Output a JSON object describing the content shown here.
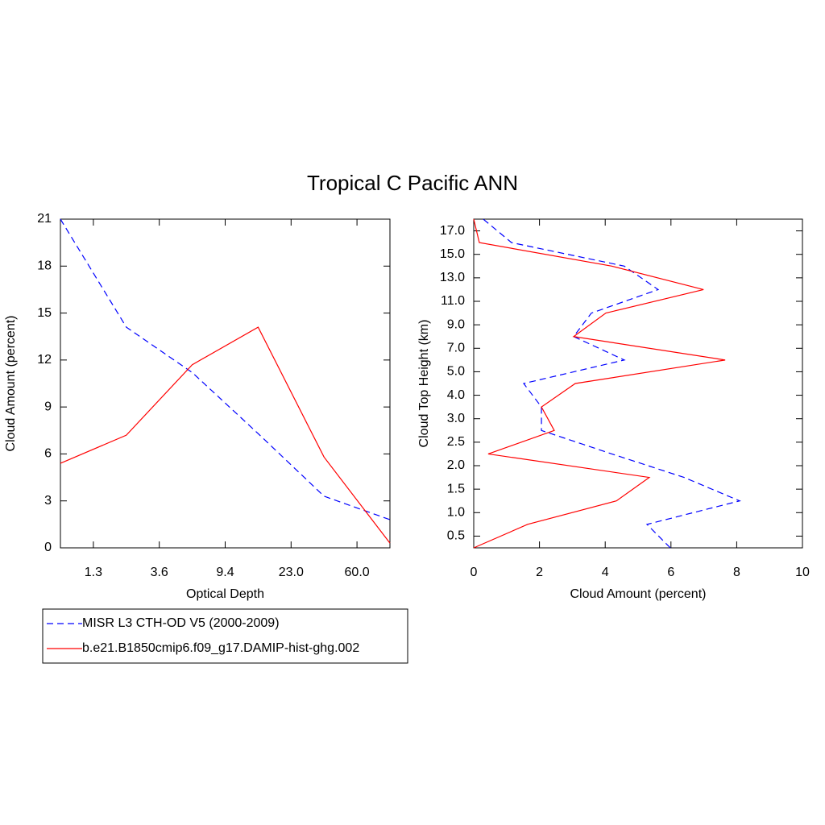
{
  "chart_data": [
    {
      "type": "line",
      "title": "Tropical C Pacific ANN",
      "x_label": "Optical Depth",
      "y_label": "Cloud Amount (percent)",
      "x": [
        0,
        1,
        2,
        3,
        4,
        5
      ],
      "xlim": [
        0,
        5
      ],
      "xticks": [
        {
          "value": 0.5,
          "label": "1.3"
        },
        {
          "value": 1.5,
          "label": "3.6"
        },
        {
          "value": 2.5,
          "label": "9.4"
        },
        {
          "value": 3.5,
          "label": "23.0"
        },
        {
          "value": 4.5,
          "label": "60.0"
        }
      ],
      "ylim": [
        0,
        21
      ],
      "yticks": [
        0,
        3,
        6,
        9,
        12,
        15,
        18,
        21
      ],
      "series": [
        {
          "name": "MISR L3 CTH-OD V5 (2000-2009)",
          "color": "#0000ff",
          "dashed": true,
          "values": [
            21,
            14.1,
            11.2,
            7.3,
            3.3,
            1.8
          ]
        },
        {
          "name": "b.e21.B1850cmip6.f09_g17.DAMIP-hist-ghg.002",
          "color": "#ff0000",
          "dashed": false,
          "values": [
            5.4,
            7.2,
            11.7,
            14.1,
            5.8,
            0.3
          ]
        }
      ]
    },
    {
      "type": "line",
      "orientation": "horizontal",
      "x_label": "Cloud Amount (percent)",
      "y_label": "Cloud Top Height (km)",
      "y": [
        0,
        1,
        2,
        3,
        4,
        5,
        6,
        7,
        8,
        9,
        10,
        11,
        12,
        13,
        14
      ],
      "xlim": [
        0,
        10
      ],
      "xticks": [
        0,
        2,
        4,
        6,
        8,
        10
      ],
      "ylim": [
        0,
        14
      ],
      "yticks": [
        {
          "value": 0.5,
          "label": "0.5"
        },
        {
          "value": 1.5,
          "label": "1.0"
        },
        {
          "value": 2.5,
          "label": "1.5"
        },
        {
          "value": 3.5,
          "label": "2.0"
        },
        {
          "value": 4.5,
          "label": "2.5"
        },
        {
          "value": 5.5,
          "label": "3.0"
        },
        {
          "value": 6.5,
          "label": "4.0"
        },
        {
          "value": 7.5,
          "label": "5.0"
        },
        {
          "value": 8.5,
          "label": "7.0"
        },
        {
          "value": 9.5,
          "label": "9.0"
        },
        {
          "value": 10.5,
          "label": "11.0"
        },
        {
          "value": 11.5,
          "label": "13.0"
        },
        {
          "value": 12.5,
          "label": "15.0"
        },
        {
          "value": 13.5,
          "label": "17.0"
        }
      ],
      "series": [
        {
          "color": "#0000ff",
          "dashed": true,
          "values": [
            5.98,
            5.27,
            8.09,
            6.4,
            4.2,
            2.06,
            2.06,
            1.52,
            4.58,
            3.04,
            3.58,
            5.61,
            4.58,
            1.15,
            0.29
          ]
        },
        {
          "color": "#ff0000",
          "dashed": false,
          "values": [
            0,
            1.64,
            4.34,
            5.34,
            0.44,
            2.45,
            2.06,
            3.09,
            7.65,
            3.04,
            4.02,
            6.99,
            4.2,
            0.17,
            0
          ]
        }
      ]
    }
  ]
}
